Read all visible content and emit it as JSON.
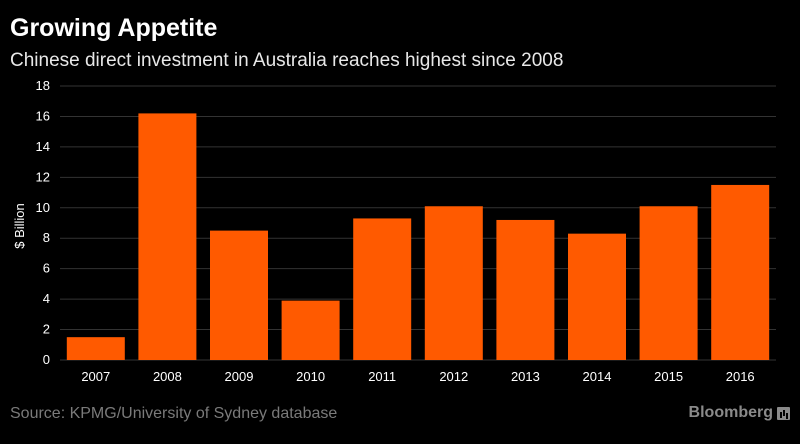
{
  "header": {
    "title": "Growing Appetite",
    "subtitle": "Chinese direct investment in Australia reaches highest since 2008"
  },
  "footer": {
    "source": "Source: KPMG/University of Sydney database",
    "brand": "Bloomberg",
    "brand_icon": "bloomberg-chart-icon"
  },
  "colors": {
    "background": "#000000",
    "bar": "#ff5a00",
    "grid": "#333333"
  },
  "chart_data": {
    "type": "bar",
    "title": "Growing Appetite",
    "subtitle": "Chinese direct investment in Australia reaches highest since 2008",
    "ylabel": "$ Billion",
    "xlabel": "",
    "categories": [
      "2007",
      "2008",
      "2009",
      "2010",
      "2011",
      "2012",
      "2013",
      "2014",
      "2015",
      "2016"
    ],
    "values": [
      1.5,
      16.2,
      8.5,
      3.9,
      9.3,
      10.1,
      9.2,
      8.3,
      10.1,
      11.5
    ],
    "ylim": [
      0,
      18
    ],
    "yticks": [
      0,
      2,
      4,
      6,
      8,
      10,
      12,
      14,
      16,
      18
    ],
    "grid": true
  }
}
